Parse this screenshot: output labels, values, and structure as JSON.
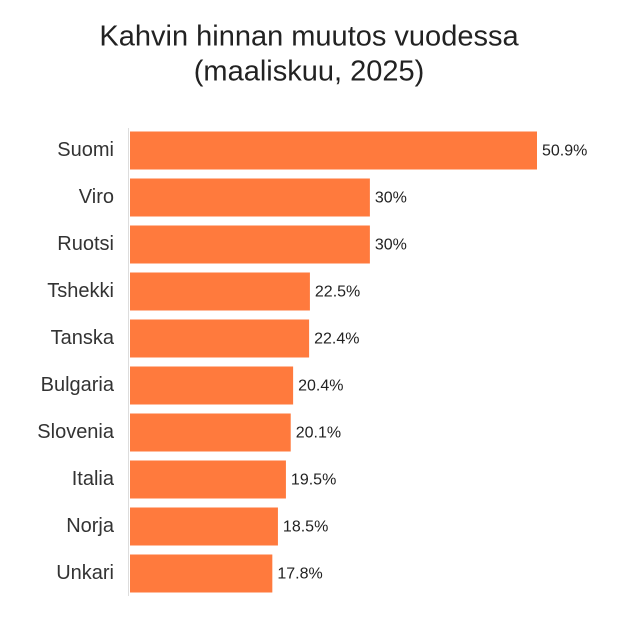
{
  "chart_data": {
    "type": "bar",
    "orientation": "horizontal",
    "title": [
      "Kahvin hinnan muutos vuodessa",
      "(maaliskuu, 2025)"
    ],
    "categories": [
      "Suomi",
      "Viro",
      "Ruotsi",
      "Tshekki",
      "Tanska",
      "Bulgaria",
      "Slovenia",
      "Italia",
      "Norja",
      "Unkari"
    ],
    "values": [
      50.9,
      30,
      30,
      22.5,
      22.4,
      20.4,
      20.1,
      19.5,
      18.5,
      17.8
    ],
    "value_labels": [
      "50.9%",
      "30%",
      "30%",
      "22.5%",
      "22.4%",
      "20.4%",
      "20.1%",
      "19.5%",
      "18.5%",
      "17.8%"
    ],
    "color": "#ff7a3d"
  }
}
